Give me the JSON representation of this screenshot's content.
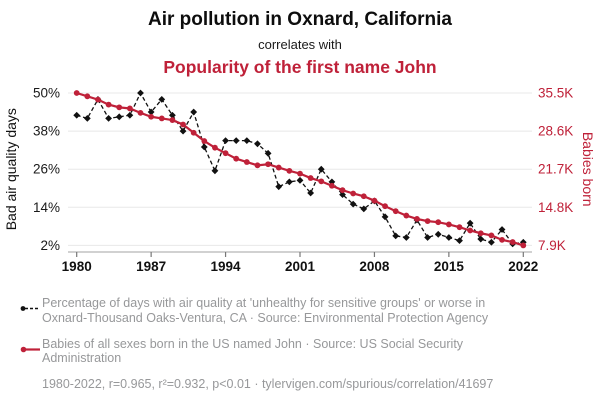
{
  "title": {
    "main": "Air pollution in Oxnard, California",
    "connector": "correlates with",
    "secondary": "Popularity of the first name John"
  },
  "colors": {
    "accent_red": "#bf2139",
    "series_black": "#111111",
    "footer_gray": "#97989a",
    "gridline": "#e8e8e8",
    "axis_line": "#a3a3a3",
    "tick_mark": "#777777"
  },
  "chart_data": {
    "type": "line",
    "x": [
      1980,
      1981,
      1982,
      1983,
      1984,
      1985,
      1986,
      1987,
      1988,
      1989,
      1990,
      1991,
      1992,
      1993,
      1994,
      1995,
      1996,
      1997,
      1998,
      1999,
      2000,
      2001,
      2002,
      2003,
      2004,
      2005,
      2006,
      2007,
      2008,
      2009,
      2010,
      2011,
      2012,
      2013,
      2014,
      2015,
      2016,
      2017,
      2018,
      2019,
      2020,
      2021,
      2022
    ],
    "x_ticks": [
      1980,
      1987,
      1994,
      2001,
      2008,
      2015,
      2022
    ],
    "series": [
      {
        "name": "Percentage of bad air quality days in Oxnard-Thousand Oaks-Ventura, CA",
        "axis": "left",
        "style": "dashed-diamond",
        "color": "#111111",
        "values": [
          43,
          42,
          48,
          42,
          42.5,
          43,
          50,
          44,
          48,
          43,
          38,
          44,
          33,
          25.5,
          35,
          35,
          35,
          34,
          31,
          20.5,
          22,
          22.5,
          18.5,
          26,
          22,
          18,
          15,
          13.5,
          16,
          11,
          5,
          4.5,
          10,
          4.5,
          5.5,
          4.5,
          3.5,
          9,
          4,
          3,
          7,
          2.5,
          3
        ]
      },
      {
        "name": "Babies of all sexes born in the US named John (thousands)",
        "axis": "right",
        "style": "solid-circle",
        "color": "#bf2139",
        "values": [
          35.5,
          34.9,
          34.3,
          33.4,
          32.9,
          32.7,
          31.9,
          31.2,
          30.9,
          30.6,
          29.8,
          28.3,
          26.8,
          25.6,
          24.6,
          23.6,
          23.0,
          22.4,
          22.6,
          22.0,
          21.4,
          20.9,
          20.1,
          19.5,
          18.7,
          17.9,
          17.3,
          16.8,
          16.0,
          15.0,
          14.1,
          13.3,
          12.7,
          12.3,
          12.1,
          11.7,
          11.2,
          10.6,
          10.1,
          9.7,
          8.9,
          8.5,
          7.9
        ]
      }
    ],
    "left_axis": {
      "label": "Bad air quality days",
      "ticks": [
        "50%",
        "38%",
        "26%",
        "14%",
        "2%"
      ],
      "tick_values": [
        50,
        38,
        26,
        14,
        2
      ],
      "range": [
        2,
        50
      ]
    },
    "right_axis": {
      "label": "Babies born",
      "ticks": [
        "35.5K",
        "28.6K",
        "21.7K",
        "14.8K",
        "7.9K"
      ],
      "tick_values": [
        35.5,
        28.6,
        21.7,
        14.8,
        7.9
      ],
      "range": [
        7.9,
        35.5
      ]
    },
    "grid": true,
    "xlim": [
      1980,
      2022
    ],
    "legend_position": "below"
  },
  "footer": {
    "legend_air_quality": "Percentage of days with air quality at 'unhealthy for sensitive groups' or worse in Oxnard-Thousand Oaks-Ventura, CA · Source: Environmental Protection Agency",
    "legend_babies": "Babies of all sexes born in the US named John · Source: US Social Security Administration",
    "stats": "1980-2022, r=0.965, r²=0.932, p<0.01 · tylervigen.com/spurious/correlation/41697"
  }
}
